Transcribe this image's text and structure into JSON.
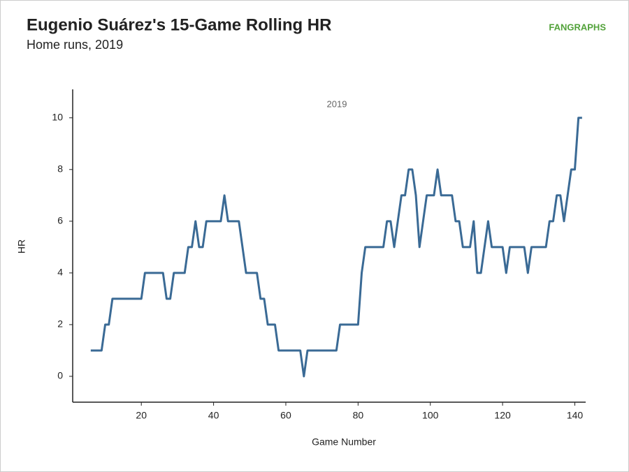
{
  "chart_data": {
    "type": "line",
    "title": "Eugenio Suárez's 15-Game Rolling HR",
    "subtitle": "Home runs, 2019",
    "logo": "FANGRAPHS",
    "annotation": "2019",
    "xlabel": "Game Number",
    "ylabel": "HR",
    "x": [
      6,
      7,
      8,
      9,
      10,
      11,
      12,
      13,
      14,
      15,
      16,
      17,
      18,
      19,
      20,
      21,
      22,
      23,
      24,
      25,
      26,
      27,
      28,
      29,
      30,
      31,
      32,
      33,
      34,
      35,
      36,
      37,
      38,
      39,
      40,
      41,
      42,
      43,
      44,
      45,
      46,
      47,
      48,
      49,
      50,
      51,
      52,
      53,
      54,
      55,
      56,
      57,
      58,
      59,
      60,
      61,
      62,
      63,
      64,
      65,
      66,
      67,
      68,
      69,
      70,
      71,
      72,
      73,
      74,
      75,
      76,
      77,
      78,
      79,
      80,
      81,
      82,
      83,
      84,
      85,
      86,
      87,
      88,
      89,
      90,
      91,
      92,
      93,
      94,
      95,
      96,
      97,
      98,
      99,
      100,
      101,
      102,
      103,
      104,
      105,
      106,
      107,
      108,
      109,
      110,
      111,
      112,
      113,
      114,
      115,
      116,
      117,
      118,
      119,
      120,
      121,
      122,
      123,
      124,
      125,
      126,
      127,
      128,
      129,
      130,
      131,
      132,
      133,
      134,
      135,
      136,
      137,
      138,
      139,
      140,
      141,
      142
    ],
    "series": [
      {
        "name": "2019",
        "color": "#3a6a95",
        "values": [
          1,
          1,
          1,
          1,
          2,
          2,
          3,
          3,
          3,
          3,
          3,
          3,
          3,
          3,
          3,
          4,
          4,
          4,
          4,
          4,
          4,
          3,
          3,
          4,
          4,
          4,
          4,
          5,
          5,
          6,
          5,
          5,
          6,
          6,
          6,
          6,
          6,
          7,
          6,
          6,
          6,
          6,
          5,
          4,
          4,
          4,
          4,
          3,
          3,
          2,
          2,
          2,
          1,
          1,
          1,
          1,
          1,
          1,
          1,
          0,
          1,
          1,
          1,
          1,
          1,
          1,
          1,
          1,
          1,
          2,
          2,
          2,
          2,
          2,
          2,
          4,
          5,
          5,
          5,
          5,
          5,
          5,
          6,
          6,
          5,
          6,
          7,
          7,
          8,
          8,
          7,
          5,
          6,
          7,
          7,
          7,
          8,
          7,
          7,
          7,
          7,
          6,
          6,
          5,
          5,
          5,
          6,
          4,
          4,
          5,
          6,
          5,
          5,
          5,
          5,
          4,
          5,
          5,
          5,
          5,
          5,
          4,
          5,
          5,
          5,
          5,
          5,
          6,
          6,
          7,
          7,
          6,
          7,
          8,
          8,
          10,
          10
        ]
      }
    ],
    "xlim": [
      1,
      143
    ],
    "xticks": [
      20,
      40,
      60,
      80,
      100,
      120,
      140
    ],
    "ylim": [
      -1,
      11.1
    ],
    "yticks": [
      0,
      2,
      4,
      6,
      8,
      10
    ],
    "grid": false
  }
}
